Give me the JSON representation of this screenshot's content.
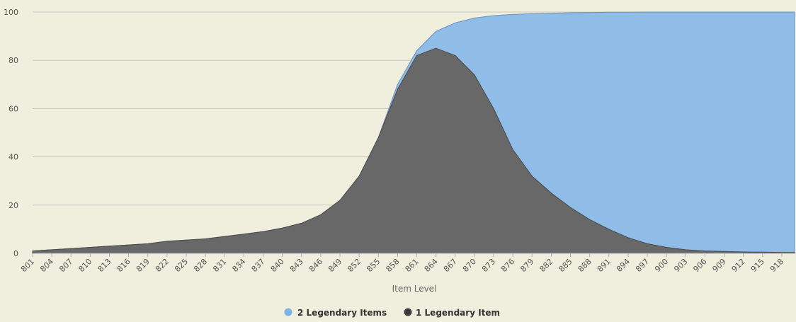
{
  "chart_data": {
    "type": "area",
    "title": "",
    "xlabel": "Item Level",
    "ylabel": "",
    "ylim": [
      0,
      100
    ],
    "xlim": [
      801,
      920
    ],
    "yticks": [
      0,
      20,
      40,
      60,
      80,
      100
    ],
    "xtick_labels": [
      "801",
      "804",
      "807",
      "810",
      "813",
      "816",
      "819",
      "822",
      "825",
      "828",
      "831",
      "834",
      "837",
      "840",
      "843",
      "846",
      "849",
      "852",
      "855",
      "858",
      "861",
      "864",
      "867",
      "870",
      "873",
      "876",
      "879",
      "882",
      "885",
      "888",
      "891",
      "894",
      "897",
      "900",
      "903",
      "906",
      "909",
      "912",
      "915",
      "918"
    ],
    "grid": true,
    "legend_position": "bottom-center",
    "x": [
      801,
      804,
      807,
      810,
      813,
      816,
      819,
      822,
      825,
      828,
      831,
      834,
      837,
      840,
      843,
      846,
      849,
      852,
      855,
      858,
      861,
      864,
      867,
      870,
      873,
      876,
      879,
      882,
      885,
      888,
      891,
      894,
      897,
      900,
      903,
      906,
      909,
      912,
      915,
      918,
      920
    ],
    "series": [
      {
        "name": "2 Legendary Items",
        "color": "#90bde8",
        "values": [
          1,
          1.5,
          2,
          2.5,
          3,
          3.5,
          4,
          5,
          5.5,
          6,
          7,
          8,
          9,
          10.5,
          12.5,
          16,
          22,
          32,
          48,
          70,
          84,
          92,
          95.5,
          97.5,
          98.5,
          99,
          99.3,
          99.5,
          99.7,
          99.8,
          99.9,
          99.9,
          100,
          100,
          100,
          100,
          100,
          100,
          100,
          100,
          100
        ]
      },
      {
        "name": "1 Legendary Item",
        "color": "#686868",
        "values": [
          1,
          1.5,
          2,
          2.5,
          3,
          3.5,
          4,
          5,
          5.5,
          6,
          7,
          8,
          9,
          10.5,
          12.5,
          16,
          22,
          32,
          48,
          68,
          82,
          85,
          82,
          74,
          60,
          43,
          32,
          25,
          19,
          14,
          10,
          6.5,
          4,
          2.5,
          1.5,
          1,
          0.8,
          0.6,
          0.5,
          0.4,
          0.4
        ]
      }
    ]
  }
}
